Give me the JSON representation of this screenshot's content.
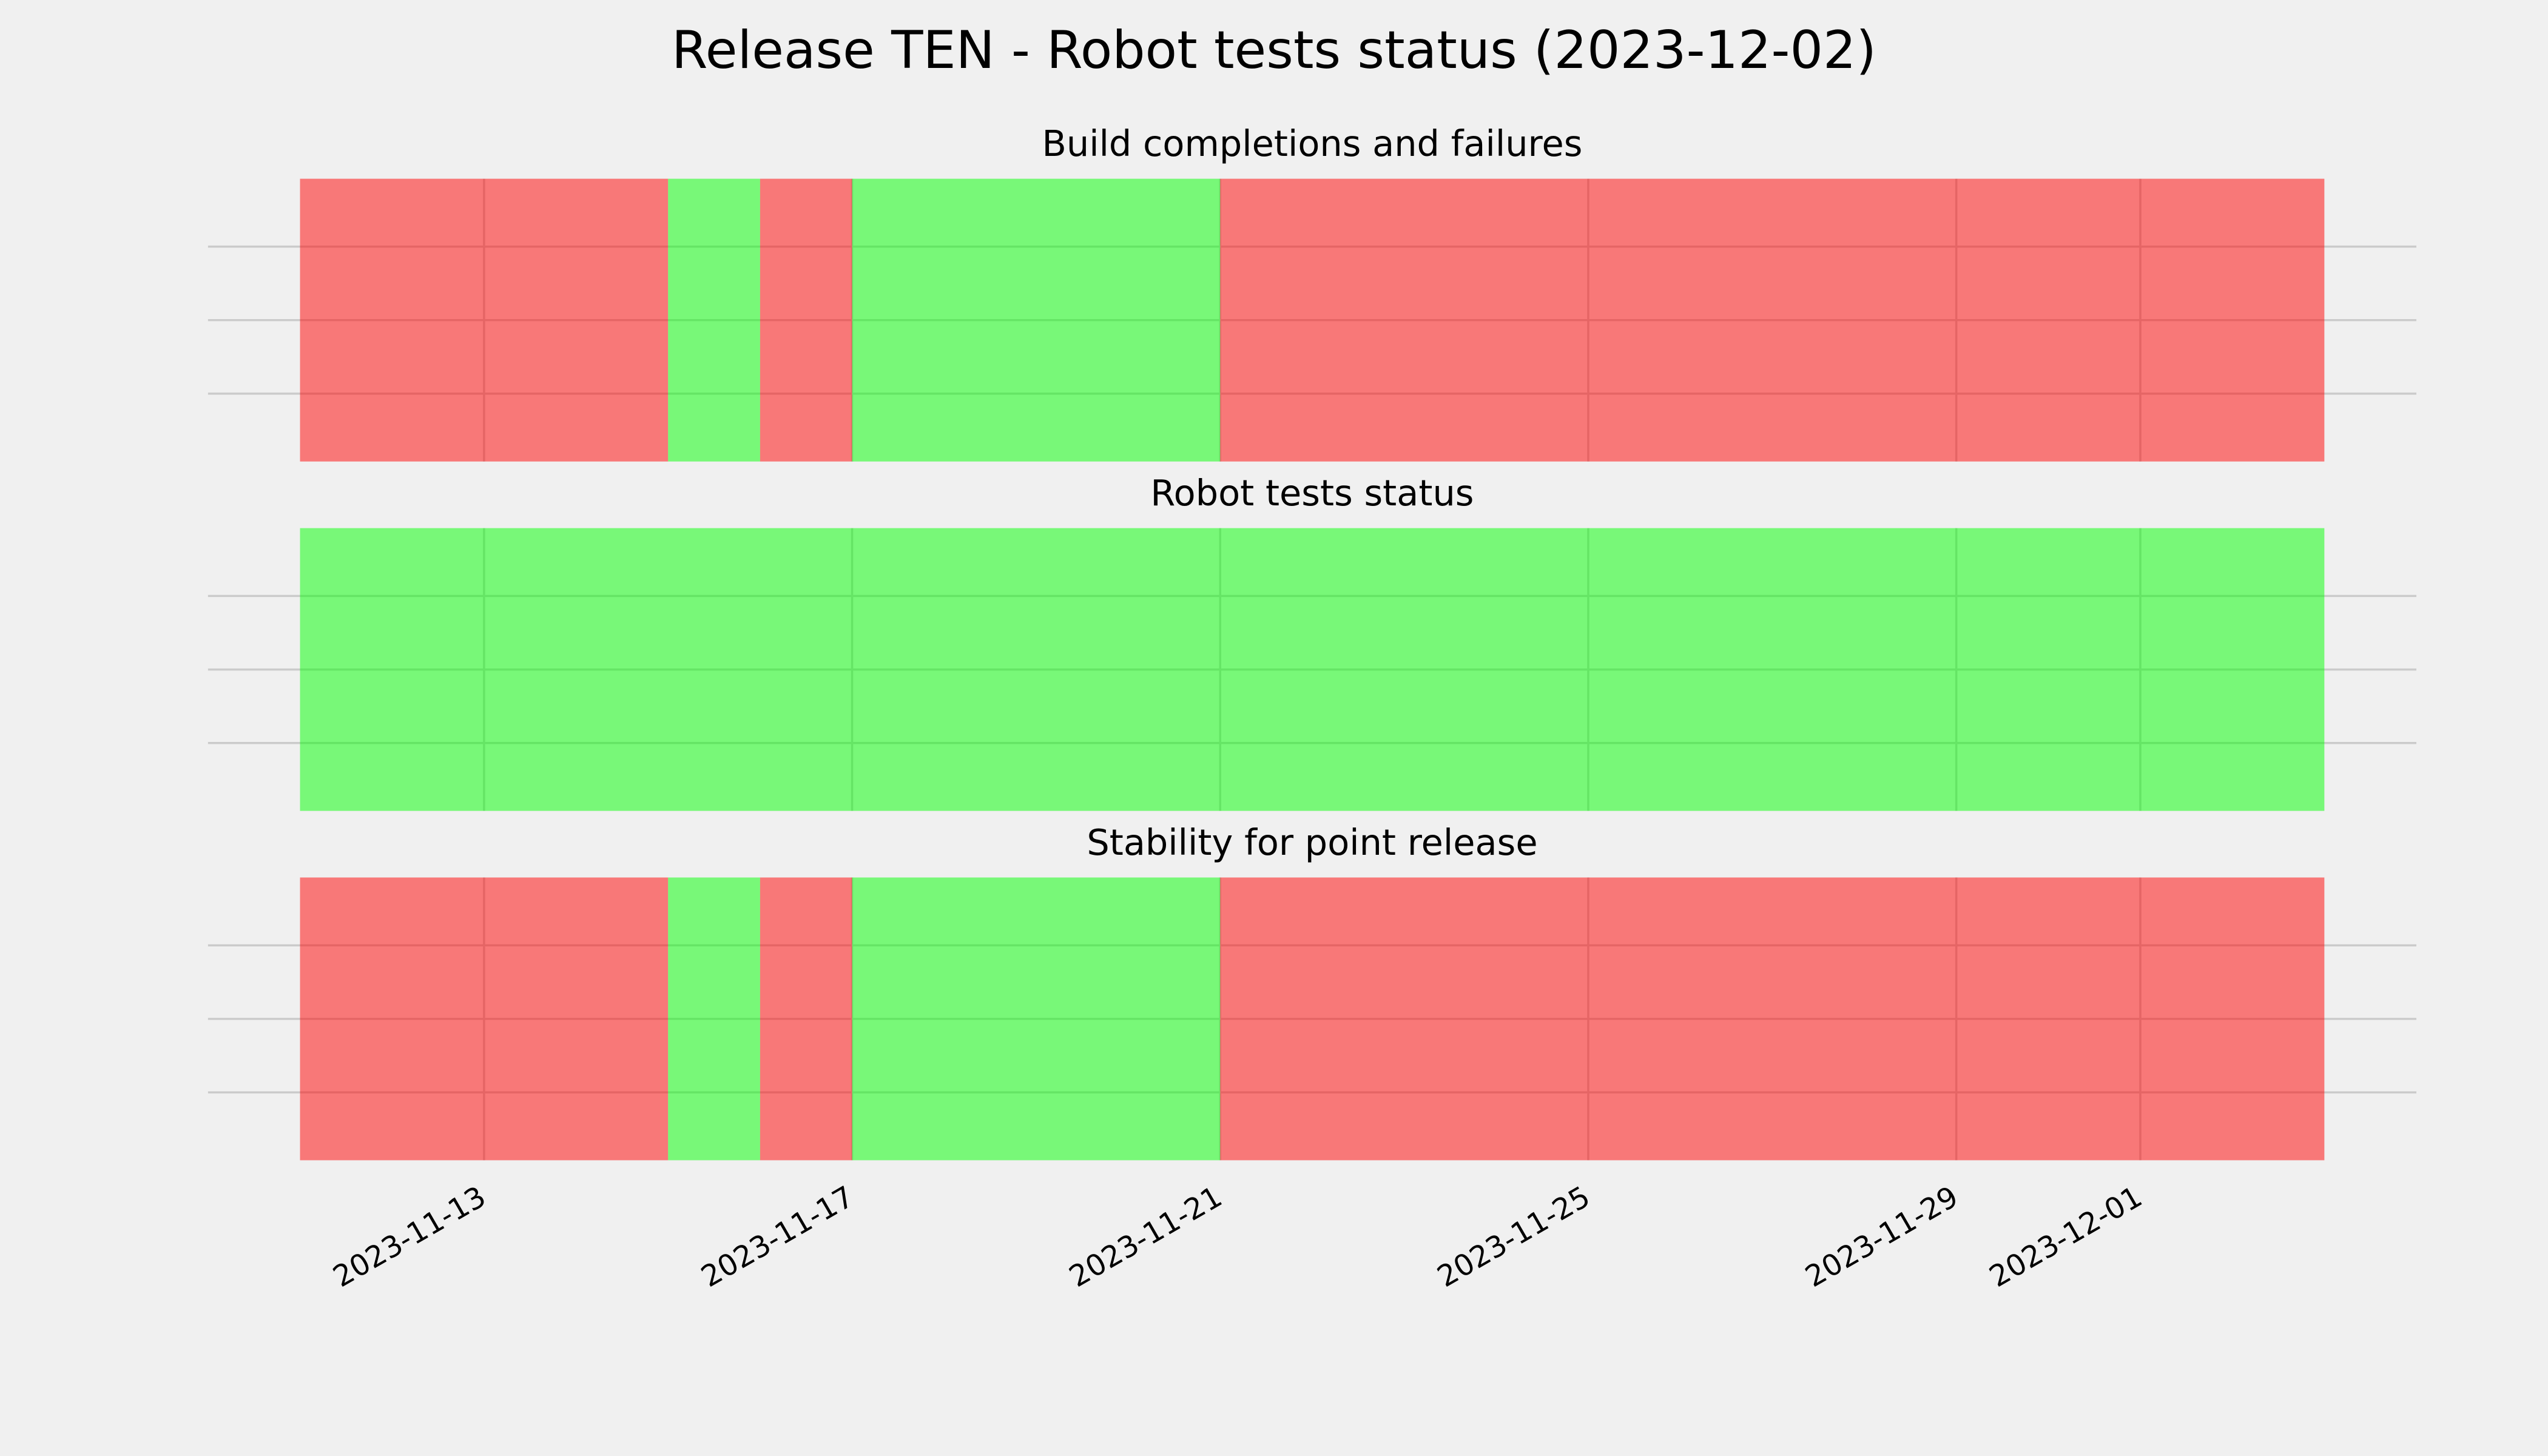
{
  "title": "Release TEN - Robot tests status (2023-12-02)",
  "chart_data": [
    {
      "type": "timeline",
      "title": "Build completions and failures",
      "segments": [
        {
          "start": "2023-11-11",
          "end": "2023-11-15",
          "color": "#ff0000"
        },
        {
          "start": "2023-11-15",
          "end": "2023-11-16",
          "color": "#00ff00"
        },
        {
          "start": "2023-11-16",
          "end": "2023-11-17",
          "color": "#ff0000"
        },
        {
          "start": "2023-11-17",
          "end": "2023-11-21",
          "color": "#00ff00"
        },
        {
          "start": "2023-11-21",
          "end": "2023-12-03",
          "color": "#ff0000"
        }
      ],
      "alpha": 0.5,
      "xlim": [
        "2023-11-10",
        "2023-12-04"
      ],
      "xticks": [
        "2023-11-13",
        "2023-11-17",
        "2023-11-21",
        "2023-11-25",
        "2023-11-29",
        "2023-12-01"
      ],
      "grid": true
    },
    {
      "type": "timeline",
      "title": "Robot tests status",
      "segments": [
        {
          "start": "2023-11-11",
          "end": "2023-12-03",
          "color": "#00ff00"
        }
      ],
      "alpha": 0.5,
      "xlim": [
        "2023-11-10",
        "2023-12-04"
      ],
      "xticks": [
        "2023-11-13",
        "2023-11-17",
        "2023-11-21",
        "2023-11-25",
        "2023-11-29",
        "2023-12-01"
      ],
      "grid": true
    },
    {
      "type": "timeline",
      "title": "Stability for point release",
      "segments": [
        {
          "start": "2023-11-11",
          "end": "2023-11-15",
          "color": "#ff0000"
        },
        {
          "start": "2023-11-15",
          "end": "2023-11-16",
          "color": "#00ff00"
        },
        {
          "start": "2023-11-16",
          "end": "2023-11-17",
          "color": "#ff0000"
        },
        {
          "start": "2023-11-17",
          "end": "2023-11-21",
          "color": "#00ff00"
        },
        {
          "start": "2023-11-21",
          "end": "2023-12-03",
          "color": "#ff0000"
        }
      ],
      "alpha": 0.5,
      "xlim": [
        "2023-11-10",
        "2023-12-04"
      ],
      "xticks": [
        "2023-11-13",
        "2023-11-17",
        "2023-11-21",
        "2023-11-25",
        "2023-11-29",
        "2023-12-01"
      ],
      "grid": true
    }
  ]
}
